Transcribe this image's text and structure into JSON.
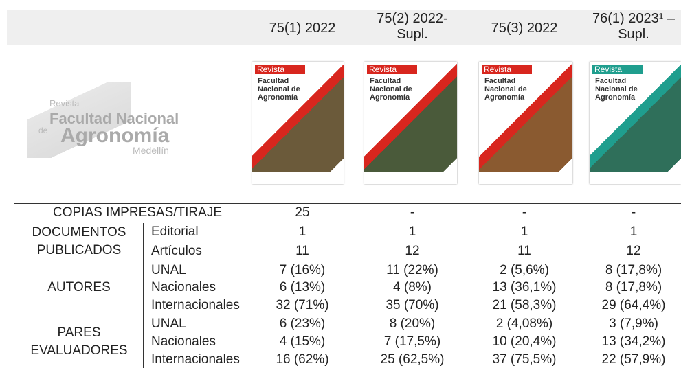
{
  "header": {
    "columns": [
      [
        "75(1) 2022"
      ],
      [
        "75(2) 2022-",
        "Supl."
      ],
      [
        "75(3) 2022"
      ],
      [
        "76(1) 2023¹ –",
        "Supl."
      ]
    ]
  },
  "logo": {
    "lines": [
      "Revista",
      "Facultad Nacional",
      "de",
      "Agronomía",
      "Medellín"
    ]
  },
  "covers": [
    {
      "badge": "Revista",
      "title": [
        "Facultad",
        "Nacional de",
        "Agronomía"
      ]
    },
    {
      "badge": "Revista",
      "title": [
        "Facultad",
        "Nacional de",
        "Agronomía"
      ]
    },
    {
      "badge": "Revista",
      "title": [
        "Facultad",
        "Nacional de",
        "Agronomía"
      ]
    },
    {
      "badge": "Revista",
      "title": [
        "Facultad",
        "Nacional de",
        "Agronomía"
      ]
    }
  ],
  "table": {
    "rows": [
      {
        "group": [
          "COPIAS IMPRESAS/TIRAJE"
        ],
        "label": null,
        "values": [
          "25",
          "-",
          "-",
          "-"
        ]
      },
      {
        "group": [
          "DOCUMENTOS",
          "PUBLICADOS"
        ],
        "label": "Editorial",
        "values": [
          "1",
          "1",
          "1",
          "1"
        ]
      },
      {
        "group": null,
        "label": "Artículos",
        "values": [
          "11",
          "12",
          "11",
          "12"
        ]
      },
      {
        "group": [
          "AUTORES"
        ],
        "label": "UNAL",
        "values": [
          "7 (16%)",
          "11 (22%)",
          "2 (5,6%)",
          "8 (17,8%)"
        ]
      },
      {
        "group": null,
        "label": "Nacionales",
        "values": [
          "6 (13%)",
          "4 (8%)",
          "13 (36,1%)",
          "8 (17,8%)"
        ]
      },
      {
        "group": null,
        "label": "Internacionales",
        "values": [
          "32 (71%)",
          "35 (70%)",
          "21 (58,3%)",
          "29 (64,4%)"
        ]
      },
      {
        "group": [
          "PARES",
          "EVALUADORES"
        ],
        "label": "UNAL",
        "values": [
          "6 (23%)",
          "8 (20%)",
          "2 (4,08%)",
          "3 (7,9%)"
        ]
      },
      {
        "group": null,
        "label": "Nacionales",
        "values": [
          "4 (15%)",
          "7 (17,5%)",
          "10 (20,4%)",
          "13 (34,2%)"
        ]
      },
      {
        "group": null,
        "label": "Internacionales",
        "values": [
          "16 (62%)",
          "25 (62,5%)",
          "37 (75,5%)",
          "22 (57,9%)"
        ]
      }
    ]
  }
}
